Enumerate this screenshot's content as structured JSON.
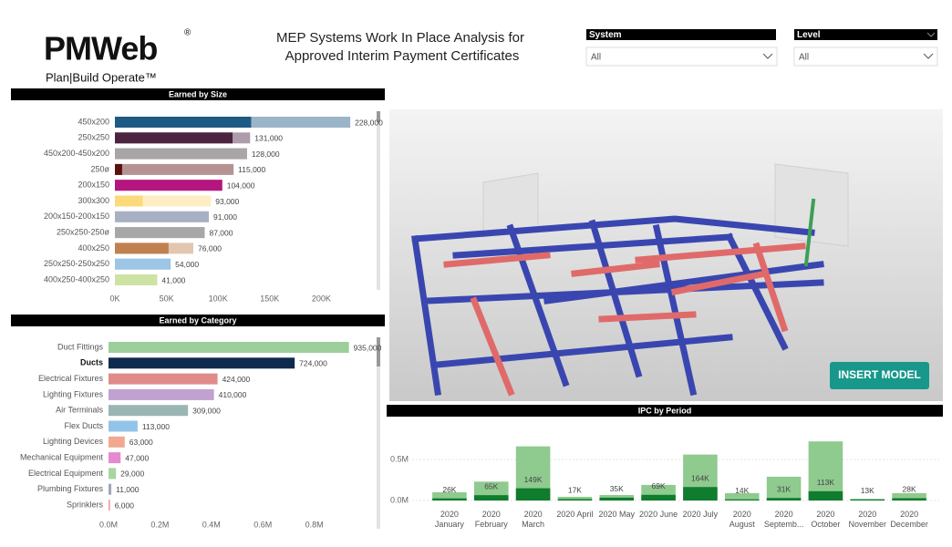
{
  "logo": {
    "name": "PMWeb",
    "mark": "®",
    "tagline": "Plan|Build Operate™"
  },
  "header": {
    "title": [
      "MEP Systems Work In Place Analysis for",
      "Approved Interim Payment Certificates"
    ]
  },
  "filters": [
    {
      "label": "System",
      "value": "All"
    },
    {
      "label": "Level",
      "value": "All"
    }
  ],
  "button": {
    "label": "INSERT MODEL"
  },
  "chart_data": [
    {
      "type": "barh",
      "title": "Earned by Size",
      "categories": [
        "450x200",
        "250x250",
        "450x200-450x200",
        "250ø",
        "200x150",
        "300x300",
        "200x150-200x150",
        "250x250-250ø",
        "400x250",
        "250x250-250x250",
        "400x250-400x250"
      ],
      "values": [
        228000,
        131000,
        128000,
        115000,
        104000,
        93000,
        91000,
        87000,
        76000,
        54000,
        41000
      ],
      "value_labels": [
        "228,000",
        "131,000",
        "128,000",
        "115,000",
        "104,000",
        "93,000",
        "91,000",
        "87,000",
        "76,000",
        "54,000",
        "41,000"
      ],
      "highlighted": [
        132000,
        114000,
        128000,
        7000,
        104000,
        27000,
        91000,
        87000,
        52000,
        54000,
        41000
      ],
      "colors": [
        "#1f5a85",
        "#4a2440",
        "#a9a4a6",
        "#5c1010",
        "#b5157f",
        "#fcd97a",
        "#a8b0c4",
        "#a7a7a7",
        "#c08050",
        "#9cc5e6",
        "#cde3a4"
      ],
      "xlim": [
        0,
        250000
      ],
      "xticks": [
        {
          "value": 0,
          "label": "0K"
        },
        {
          "value": 50000,
          "label": "50K"
        },
        {
          "value": 100000,
          "label": "100K"
        },
        {
          "value": 150000,
          "label": "150K"
        },
        {
          "value": 200000,
          "label": "200K"
        }
      ]
    },
    {
      "type": "barh",
      "title": "Earned by Category",
      "categories": [
        "Duct Fittings",
        "Ducts",
        "Electrical Fixtures",
        "Lighting Fixtures",
        "Air Terminals",
        "Flex Ducts",
        "Lighting Devices",
        "Mechanical Equipment",
        "Electrical Equipment",
        "Plumbing Fixtures",
        "Sprinklers"
      ],
      "values": [
        935000,
        724000,
        424000,
        410000,
        309000,
        113000,
        63000,
        47000,
        29000,
        11000,
        6000
      ],
      "value_labels": [
        "935,000",
        "724,000",
        "424,000",
        "410,000",
        "309,000",
        "113,000",
        "63,000",
        "47,000",
        "29,000",
        "11,000",
        "6,000"
      ],
      "colors": [
        "#9ccf9c",
        "#0f2a4d",
        "#e08a8a",
        "#c1a1d0",
        "#9bb5b5",
        "#92c3e8",
        "#f0a890",
        "#e58ad0",
        "#a8d4a0",
        "#a0a8b8",
        "#f0a0a0"
      ],
      "selected_index": 1,
      "xlim": [
        0,
        1000000
      ],
      "xticks": [
        {
          "value": 0,
          "label": "0.0M"
        },
        {
          "value": 200000,
          "label": "0.2M"
        },
        {
          "value": 400000,
          "label": "0.4M"
        },
        {
          "value": 600000,
          "label": "0.6M"
        },
        {
          "value": 800000,
          "label": "0.8M"
        }
      ]
    },
    {
      "type": "bar",
      "title": "IPC by Period",
      "categories": [
        "2020 January",
        "2020 February",
        "2020 March",
        "2020 April",
        "2020 May",
        "2020 June",
        "2020 July",
        "2020 August",
        "2020 Septemb...",
        "2020 October",
        "2020 November",
        "2020 December"
      ],
      "values": [
        26000,
        65000,
        149000,
        17000,
        35000,
        69000,
        164000,
        14000,
        31000,
        113000,
        13000,
        28000
      ],
      "value_labels": [
        "26K",
        "65K",
        "149K",
        "17K",
        "35K",
        "69K",
        "164K",
        "14K",
        "31K",
        "113K",
        "13K",
        "28K"
      ],
      "totals": [
        100000,
        230000,
        660000,
        45000,
        67000,
        190000,
        560000,
        90000,
        290000,
        720000,
        20000,
        90000
      ],
      "color": "#107c2e",
      "total_color": "#8fca8f",
      "ylim": [
        0,
        800000
      ],
      "yticks": [
        {
          "value": 0,
          "label": "0.0M"
        },
        {
          "value": 500000,
          "label": "0.5M"
        }
      ],
      "grid": true
    }
  ]
}
